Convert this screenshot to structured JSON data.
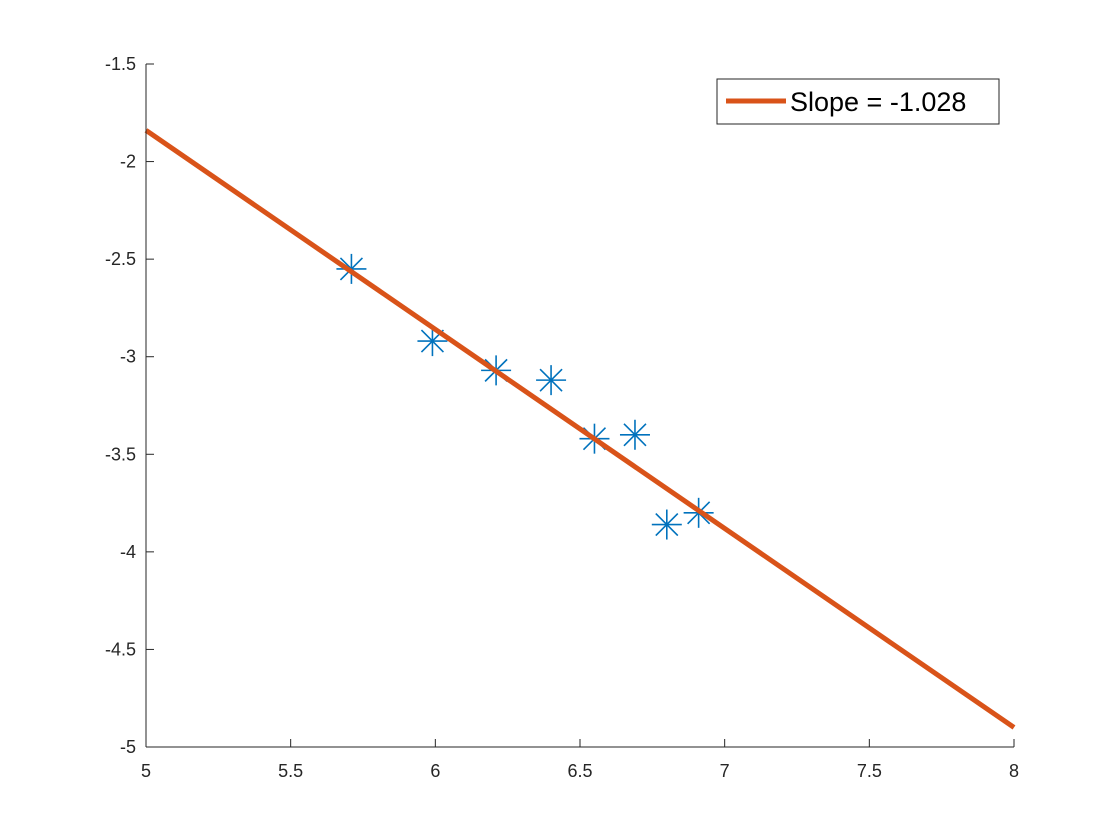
{
  "chart_data": {
    "type": "scatter",
    "xlim": [
      5,
      8
    ],
    "ylim": [
      -5,
      -1.5
    ],
    "x_ticks": [
      5,
      5.5,
      6,
      6.5,
      7,
      7.5,
      8
    ],
    "y_ticks": [
      -5,
      -4.5,
      -4,
      -3.5,
      -3,
      -2.5,
      -2,
      -1.5
    ],
    "x_tick_labels": [
      "5",
      "5.5",
      "6",
      "6.5",
      "7",
      "7.5",
      "8"
    ],
    "y_tick_labels": [
      "-5",
      "-4.5",
      "-4",
      "-3.5",
      "-3",
      "-2.5",
      "-2",
      "-1.5"
    ],
    "grid": false,
    "series": [
      {
        "marker": "asterisk",
        "color": "#0072BD",
        "points": [
          {
            "x": 5.71,
            "y": -2.55
          },
          {
            "x": 5.99,
            "y": -2.92
          },
          {
            "x": 6.21,
            "y": -3.07
          },
          {
            "x": 6.4,
            "y": -3.12
          },
          {
            "x": 6.55,
            "y": -3.42
          },
          {
            "x": 6.69,
            "y": -3.4
          },
          {
            "x": 6.8,
            "y": -3.86
          },
          {
            "x": 6.91,
            "y": -3.8
          }
        ]
      }
    ],
    "fit_line": {
      "name": "Slope = -1.028",
      "color": "#D95319",
      "x": [
        5,
        8
      ],
      "y": [
        -1.84,
        -4.9
      ]
    },
    "legend": {
      "placement": "top-right",
      "entries": [
        "Slope = -1.028"
      ]
    }
  }
}
